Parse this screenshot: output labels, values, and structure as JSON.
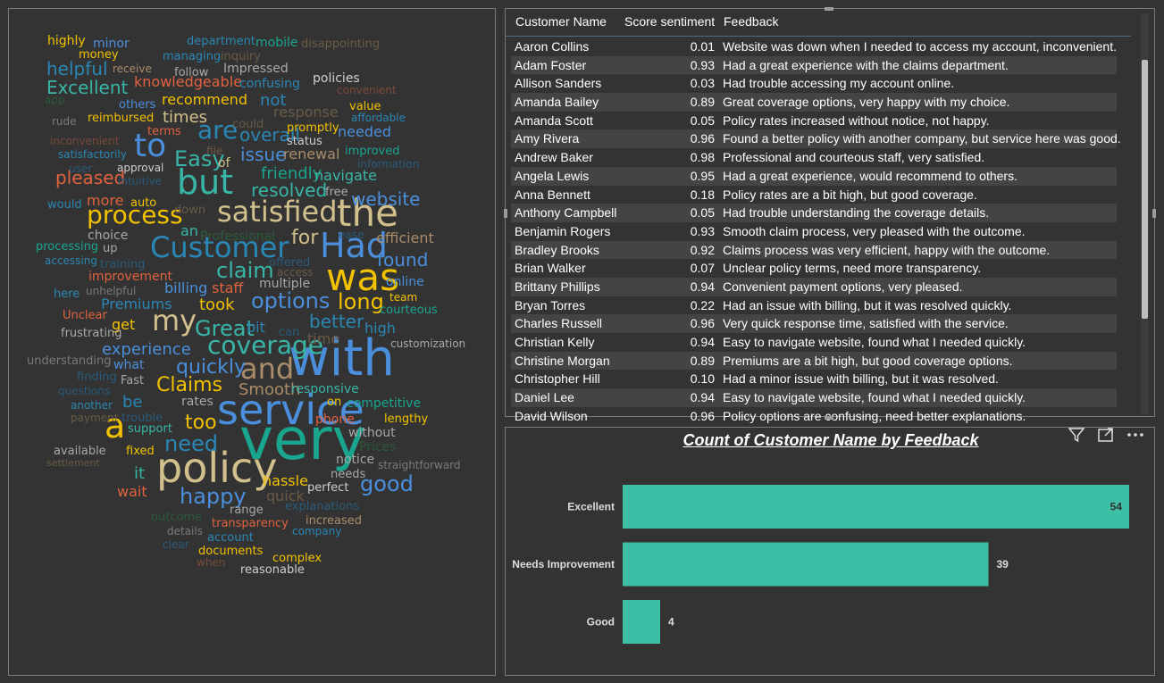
{
  "word_cloud": {
    "words": [
      {
        "t": "very",
        "s": 64,
        "c": "#1aa58f"
      },
      {
        "t": "with",
        "s": 56,
        "c": "#4b8fdc"
      },
      {
        "t": "service",
        "s": 46,
        "c": "#4b8fdc"
      },
      {
        "t": "policy",
        "s": 46,
        "c": "#d2c08c"
      },
      {
        "t": "the",
        "s": 42,
        "c": "#d2c08c"
      },
      {
        "t": "was",
        "s": 42,
        "c": "#f2c200"
      },
      {
        "t": "but",
        "s": 38,
        "c": "#39b5a7"
      },
      {
        "t": "Had",
        "s": 38,
        "c": "#4b8fdc"
      },
      {
        "t": "a",
        "s": 38,
        "c": "#f2c200"
      },
      {
        "t": "to",
        "s": 36,
        "c": "#4b8fdc"
      },
      {
        "t": "satisfied",
        "s": 32,
        "c": "#d2c08c"
      },
      {
        "t": "Customer",
        "s": 32,
        "c": "#2a87b5"
      },
      {
        "t": "and",
        "s": 32,
        "c": "#a98c6a"
      },
      {
        "t": "my",
        "s": 32,
        "c": "#d2c08c"
      },
      {
        "t": "coverage",
        "s": 28,
        "c": "#39b5a7"
      },
      {
        "t": "process",
        "s": 28,
        "c": "#f2c200"
      },
      {
        "t": "are",
        "s": 28,
        "c": "#2a87b5"
      },
      {
        "t": "options",
        "s": 24,
        "c": "#4b8fdc"
      },
      {
        "t": "Great",
        "s": 24,
        "c": "#39b5a7"
      },
      {
        "t": "claim",
        "s": 24,
        "c": "#39b5a7"
      },
      {
        "t": "long",
        "s": 24,
        "c": "#f2c200"
      },
      {
        "t": "good",
        "s": 24,
        "c": "#4b8fdc"
      },
      {
        "t": "Easy",
        "s": 24,
        "c": "#39b5a7"
      },
      {
        "t": "need",
        "s": 24,
        "c": "#2a87b5"
      },
      {
        "t": "happy",
        "s": 24,
        "c": "#4b8fdc"
      },
      {
        "t": "Claims",
        "s": 22,
        "c": "#f2c200"
      },
      {
        "t": "too",
        "s": 22,
        "c": "#f2c200"
      },
      {
        "t": "quickly",
        "s": 22,
        "c": "#4b8fdc"
      },
      {
        "t": "for",
        "s": 22,
        "c": "#d2c08c"
      },
      {
        "t": "resolved",
        "s": 20,
        "c": "#39b5a7"
      },
      {
        "t": "found",
        "s": 20,
        "c": "#4b8fdc"
      },
      {
        "t": "better",
        "s": 20,
        "c": "#2a87b5"
      },
      {
        "t": "website",
        "s": 20,
        "c": "#4b8fdc"
      },
      {
        "t": "overall",
        "s": 20,
        "c": "#2a87b5"
      },
      {
        "t": "issue",
        "s": 20,
        "c": "#4b8fdc"
      },
      {
        "t": "pleased",
        "s": 20,
        "c": "#e0623f"
      },
      {
        "t": "helpful",
        "s": 20,
        "c": "#2a87b5"
      },
      {
        "t": "Excellent",
        "s": 20,
        "c": "#39b5a7"
      },
      {
        "t": "experience",
        "s": 18,
        "c": "#4b8fdc"
      },
      {
        "t": "took",
        "s": 18,
        "c": "#f2c200"
      },
      {
        "t": "it",
        "s": 18,
        "c": "#39b5a7"
      },
      {
        "t": "friendly",
        "s": 18,
        "c": "#1aa58f"
      },
      {
        "t": "times",
        "s": 18,
        "c": "#d2c08c"
      },
      {
        "t": "not",
        "s": 18,
        "c": "#2a87b5"
      },
      {
        "t": "Smooth",
        "s": 18,
        "c": "#a98c6a"
      },
      {
        "t": "Premiums",
        "s": 16,
        "c": "#2a87b5"
      },
      {
        "t": "recommend",
        "s": 16,
        "c": "#f2c200"
      },
      {
        "t": "renewal",
        "s": 16,
        "c": "#a98c6a"
      },
      {
        "t": "knowledgeable",
        "s": 16,
        "c": "#e0623f"
      },
      {
        "t": "needed",
        "s": 16,
        "c": "#4b8fdc"
      },
      {
        "t": "navigate",
        "s": 16,
        "c": "#39b5a7"
      },
      {
        "t": "billing",
        "s": 16,
        "c": "#4b8fdc"
      },
      {
        "t": "staff",
        "s": 16,
        "c": "#e0623f"
      },
      {
        "t": "hassle",
        "s": 16,
        "c": "#f2c200"
      },
      {
        "t": "bit",
        "s": 16,
        "c": "#2a87b5"
      },
      {
        "t": "high",
        "s": 16,
        "c": "#2a87b5"
      },
      {
        "t": "wait",
        "s": 16,
        "c": "#e0623f"
      },
      {
        "t": "response",
        "s": 16,
        "c": "#6a5a46"
      },
      {
        "t": "more",
        "s": 16,
        "c": "#e0623f"
      },
      {
        "t": "get",
        "s": 16,
        "c": "#f2c200"
      },
      {
        "t": "efficient",
        "s": 16,
        "c": "#a98c6a"
      },
      {
        "t": "an",
        "s": 16,
        "c": "#39b5a7"
      },
      {
        "t": "improvement",
        "s": 14,
        "c": "#e0623f"
      },
      {
        "t": "responsive",
        "s": 14,
        "c": "#39b5a7"
      },
      {
        "t": "be",
        "s": 18,
        "c": "#2a87b5"
      },
      {
        "t": "multiple",
        "s": 14,
        "c": "#a8a8a8"
      },
      {
        "t": "online",
        "s": 14,
        "c": "#4b8fdc"
      },
      {
        "t": "policies",
        "s": 14,
        "c": "#cfcfcf"
      },
      {
        "t": "quick",
        "s": 16,
        "c": "#6a5a46"
      },
      {
        "t": "rates",
        "s": 14,
        "c": "#a8a8a8"
      },
      {
        "t": "phone",
        "s": 14,
        "c": "#e0623f"
      },
      {
        "t": "competitive",
        "s": 14,
        "c": "#1aa58f"
      },
      {
        "t": "Impressed",
        "s": 14,
        "c": "#a8a8a8"
      },
      {
        "t": "highly",
        "s": 14,
        "c": "#f2c200"
      },
      {
        "t": "minor",
        "s": 14,
        "c": "#4b8fdc"
      },
      {
        "t": "money",
        "s": 13,
        "c": "#f2c200"
      },
      {
        "t": "department",
        "s": 13,
        "c": "#2a87b5"
      },
      {
        "t": "mobile",
        "s": 14,
        "c": "#1aa58f"
      },
      {
        "t": "disappointing",
        "s": 13,
        "c": "#6a5a46"
      },
      {
        "t": "managing",
        "s": 13,
        "c": "#2a87b5"
      },
      {
        "t": "inquiry",
        "s": 13,
        "c": "#6a5a46"
      },
      {
        "t": "receive",
        "s": 12,
        "c": "#a98c6a"
      },
      {
        "t": "follow",
        "s": 13,
        "c": "#a8a8a8"
      },
      {
        "t": "confusing",
        "s": 14,
        "c": "#2a87b5"
      },
      {
        "t": "value",
        "s": 13,
        "c": "#f2c200"
      },
      {
        "t": "others",
        "s": 13,
        "c": "#4b8fdc"
      },
      {
        "t": "reimbursed",
        "s": 13,
        "c": "#f2c200"
      },
      {
        "t": "terms",
        "s": 13,
        "c": "#e0623f"
      },
      {
        "t": "promptly",
        "s": 13,
        "c": "#f2c200"
      },
      {
        "t": "could",
        "s": 13,
        "c": "#6a5a46"
      },
      {
        "t": "affordable",
        "s": 12,
        "c": "#2a87b5"
      },
      {
        "t": "rude",
        "s": 12,
        "c": "#7a7a7a"
      },
      {
        "t": "inconvenient",
        "s": 12,
        "c": "#7a4a3a"
      },
      {
        "t": "satisfactorily",
        "s": 12,
        "c": "#2a87b5"
      },
      {
        "t": "approval",
        "s": 12,
        "c": "#cfcfcf"
      },
      {
        "t": "file",
        "s": 12,
        "c": "#6a5a46"
      },
      {
        "t": "of",
        "s": 14,
        "c": "#d2c08c"
      },
      {
        "t": "status",
        "s": 13,
        "c": "#cfcfcf"
      },
      {
        "t": "improved",
        "s": 13,
        "c": "#1aa58f"
      },
      {
        "t": "information",
        "s": 12,
        "c": "#2a5a7a"
      },
      {
        "t": "user",
        "s": 12,
        "c": "#2a5a7a"
      },
      {
        "t": "intuitive",
        "s": 12,
        "c": "#2a5a7a"
      },
      {
        "t": "would",
        "s": 13,
        "c": "#2a87b5"
      },
      {
        "t": "auto",
        "s": 13,
        "c": "#f2c200"
      },
      {
        "t": "free",
        "s": 13,
        "c": "#a8a8a8"
      },
      {
        "t": "down",
        "s": 13,
        "c": "#6a5a46"
      },
      {
        "t": "choice",
        "s": 14,
        "c": "#a8a8a8"
      },
      {
        "t": "Professional",
        "s": 14,
        "c": "#2a5a3a"
      },
      {
        "t": "ease",
        "s": 12,
        "c": "#2a5a7a"
      },
      {
        "t": "processing",
        "s": 13,
        "c": "#1aa58f"
      },
      {
        "t": "up",
        "s": 13,
        "c": "#a8a8a8"
      },
      {
        "t": "accessing",
        "s": 12,
        "c": "#2a87b5"
      },
      {
        "t": "training",
        "s": 13,
        "c": "#2a5a7a"
      },
      {
        "t": "offered",
        "s": 13,
        "c": "#2a5a7a"
      },
      {
        "t": "access",
        "s": 12,
        "c": "#6a5a46"
      },
      {
        "t": "here",
        "s": 13,
        "c": "#2a87b5"
      },
      {
        "t": "unhelpful",
        "s": 12,
        "c": "#7a7a7a"
      },
      {
        "t": "team",
        "s": 12,
        "c": "#f2c200"
      },
      {
        "t": "courteous",
        "s": 13,
        "c": "#1aa58f"
      },
      {
        "t": "Unclear",
        "s": 13,
        "c": "#e0623f"
      },
      {
        "t": "frustrating",
        "s": 13,
        "c": "#a8a8a8"
      },
      {
        "t": "can",
        "s": 13,
        "c": "#2a5a7a"
      },
      {
        "t": "time",
        "s": 16,
        "c": "#6a5a46"
      },
      {
        "t": "customization",
        "s": 12,
        "c": "#a8a8a8"
      },
      {
        "t": "understanding",
        "s": 13,
        "c": "#7a7a7a"
      },
      {
        "t": "what",
        "s": 14,
        "c": "#4b8fdc"
      },
      {
        "t": "finding",
        "s": 13,
        "c": "#2a5a7a"
      },
      {
        "t": "Fast",
        "s": 13,
        "c": "#a8a8a8"
      },
      {
        "t": "questions",
        "s": 12,
        "c": "#2a5a7a"
      },
      {
        "t": "another",
        "s": 12,
        "c": "#2a87b5"
      },
      {
        "t": "trouble",
        "s": 13,
        "c": "#2a5a7a"
      },
      {
        "t": "payment",
        "s": 12,
        "c": "#6a5a46"
      },
      {
        "t": "on",
        "s": 13,
        "c": "#f2c200"
      },
      {
        "t": "lengthy",
        "s": 13,
        "c": "#f2c200"
      },
      {
        "t": "support",
        "s": 13,
        "c": "#39b5a7"
      },
      {
        "t": "without",
        "s": 14,
        "c": "#a8a8a8"
      },
      {
        "t": "Prices",
        "s": 14,
        "c": "#2a5a3a"
      },
      {
        "t": "available",
        "s": 13,
        "c": "#a8a8a8"
      },
      {
        "t": "fixed",
        "s": 13,
        "c": "#f2c200"
      },
      {
        "t": "notice",
        "s": 14,
        "c": "#a8a8a8"
      },
      {
        "t": "settlement",
        "s": 11,
        "c": "#6a5a46"
      },
      {
        "t": "straightforward",
        "s": 12,
        "c": "#7a7a7a"
      },
      {
        "t": "needs",
        "s": 13,
        "c": "#a8a8a8"
      },
      {
        "t": "perfect",
        "s": 13,
        "c": "#cfcfcf"
      },
      {
        "t": "range",
        "s": 13,
        "c": "#a8a8a8"
      },
      {
        "t": "explanations",
        "s": 13,
        "c": "#2a5a7a"
      },
      {
        "t": "outcome",
        "s": 13,
        "c": "#2a5a3a"
      },
      {
        "t": "transparency",
        "s": 13,
        "c": "#e0623f"
      },
      {
        "t": "increased",
        "s": 13,
        "c": "#a98c6a"
      },
      {
        "t": "details",
        "s": 12,
        "c": "#7a7a7a"
      },
      {
        "t": "account",
        "s": 13,
        "c": "#2a87b5"
      },
      {
        "t": "company",
        "s": 12,
        "c": "#2a87b5"
      },
      {
        "t": "clear",
        "s": 12,
        "c": "#2a5a7a"
      },
      {
        "t": "documents",
        "s": 13,
        "c": "#f2c200"
      },
      {
        "t": "complex",
        "s": 13,
        "c": "#f2c200"
      },
      {
        "t": "when",
        "s": 12,
        "c": "#7a4a3a"
      },
      {
        "t": "reasonable",
        "s": 13,
        "c": "#cfcfcf"
      },
      {
        "t": "app",
        "s": 12,
        "c": "#2a5a3a"
      },
      {
        "t": "convenient",
        "s": 12,
        "c": "#7a4a3a"
      }
    ]
  },
  "table": {
    "headers": {
      "name": "Customer Name",
      "score": "Score sentiment",
      "feedback": "Feedback"
    },
    "rows": [
      {
        "name": "Aaron Collins",
        "score": "0.01",
        "feedback": "Website was down when I needed to access my account, inconvenient."
      },
      {
        "name": "Adam Foster",
        "score": "0.93",
        "feedback": "Had a great experience with the claims department."
      },
      {
        "name": "Allison Sanders",
        "score": "0.03",
        "feedback": "Had trouble accessing my account online."
      },
      {
        "name": "Amanda Bailey",
        "score": "0.89",
        "feedback": "Great coverage options, very happy with my choice."
      },
      {
        "name": "Amanda Scott",
        "score": "0.05",
        "feedback": "Policy rates increased without notice, not happy."
      },
      {
        "name": "Amy Rivera",
        "score": "0.96",
        "feedback": "Found a better policy with another company, but service here was good."
      },
      {
        "name": "Andrew Baker",
        "score": "0.98",
        "feedback": "Professional and courteous staff, very satisfied."
      },
      {
        "name": "Angela Lewis",
        "score": "0.95",
        "feedback": "Had a great experience, would recommend to others."
      },
      {
        "name": "Anna Bennett",
        "score": "0.18",
        "feedback": "Policy rates are a bit high, but good coverage."
      },
      {
        "name": "Anthony Campbell",
        "score": "0.05",
        "feedback": "Had trouble understanding the coverage details."
      },
      {
        "name": "Benjamin Rogers",
        "score": "0.93",
        "feedback": "Smooth claim process, very pleased with the outcome."
      },
      {
        "name": "Bradley Brooks",
        "score": "0.92",
        "feedback": "Claims process was very efficient, happy with the outcome."
      },
      {
        "name": "Brian Walker",
        "score": "0.07",
        "feedback": "Unclear policy terms, need more transparency."
      },
      {
        "name": "Brittany Phillips",
        "score": "0.94",
        "feedback": "Convenient payment options, very pleased."
      },
      {
        "name": "Bryan Torres",
        "score": "0.22",
        "feedback": "Had an issue with billing, but it was resolved quickly."
      },
      {
        "name": "Charles Russell",
        "score": "0.96",
        "feedback": "Very quick response time, satisfied with the service."
      },
      {
        "name": "Christian Kelly",
        "score": "0.94",
        "feedback": "Easy to navigate website, found what I needed quickly."
      },
      {
        "name": "Christine Morgan",
        "score": "0.89",
        "feedback": "Premiums are a bit high, but good coverage options."
      },
      {
        "name": "Christopher Hill",
        "score": "0.10",
        "feedback": "Had a minor issue with billing, but it was resolved."
      },
      {
        "name": "Daniel Lee",
        "score": "0.94",
        "feedback": "Easy to navigate website, found what I needed quickly."
      },
      {
        "name": "David Wilson",
        "score": "0.96",
        "feedback": "Policy options are confusing, need better explanations."
      }
    ]
  },
  "chart_data": {
    "type": "bar",
    "orientation": "horizontal",
    "title": "Count of Customer Name by Feedback",
    "categories": [
      "Excellent",
      "Needs Improvement",
      "Good"
    ],
    "values": [
      54,
      39,
      4
    ],
    "xlim": [
      0,
      54
    ],
    "data_labels": true,
    "bar_color": "#3dbfa6"
  },
  "visual_header": {
    "filter_icon": "filter-icon",
    "focus_icon": "focus-mode-icon",
    "more_icon": "more-options-icon"
  }
}
